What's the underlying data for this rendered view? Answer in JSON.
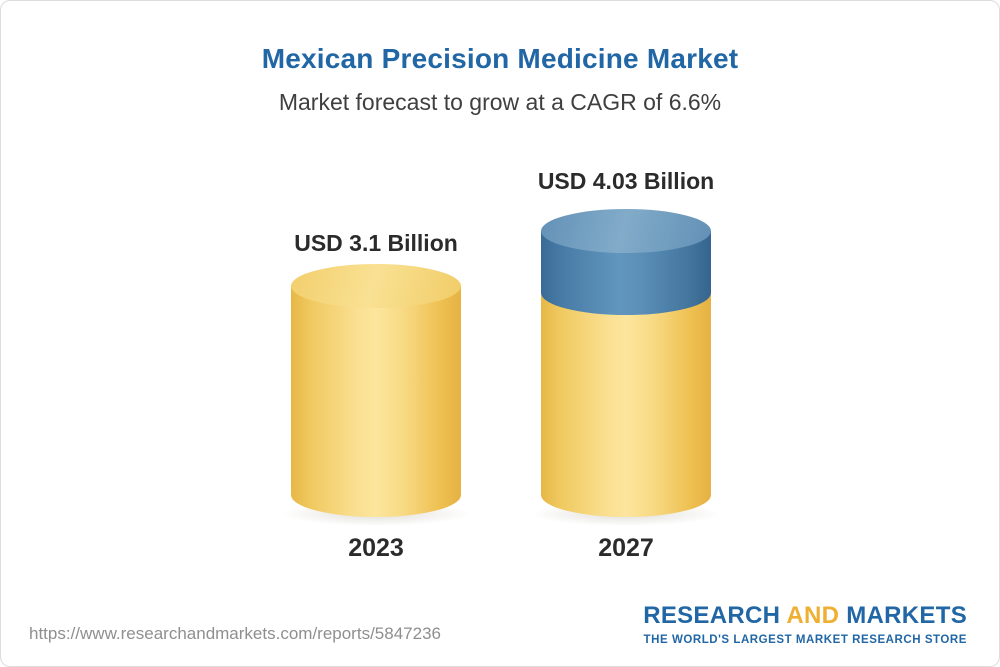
{
  "header": {
    "title": "Mexican Precision Medicine Market",
    "subtitle": "Market forecast to grow at a CAGR of 6.6%"
  },
  "chart_data": {
    "type": "bar",
    "bar_style": "3d-cylinder",
    "categories": [
      "2023",
      "2027"
    ],
    "values": [
      3.1,
      4.03
    ],
    "value_labels": [
      "USD 3.1 Billion",
      "USD 4.03 Billion"
    ],
    "unit": "USD Billion",
    "title": "Mexican Precision Medicine Market",
    "subtitle": "Market forecast to grow at a CAGR of 6.6%",
    "cagr_percent": 6.6,
    "legend_position": "none",
    "grid": false,
    "annotations": [
      "2027 bar has a blue top segment representing growth above the 2023 value"
    ],
    "colors": {
      "bar_base": "#f3cf6a",
      "growth_cap": "#4b80ab",
      "value_label_text": "#2b2b2b",
      "title_text": "#2166a5"
    }
  },
  "footer": {
    "url": "https://www.researchandmarkets.com/reports/5847236",
    "logo": {
      "word1": "RESEARCH",
      "word2": "AND",
      "word3": "MARKETS",
      "tagline": "THE WORLD'S LARGEST MARKET RESEARCH STORE",
      "blue": "#2166a5",
      "gold": "#efaf33"
    }
  }
}
